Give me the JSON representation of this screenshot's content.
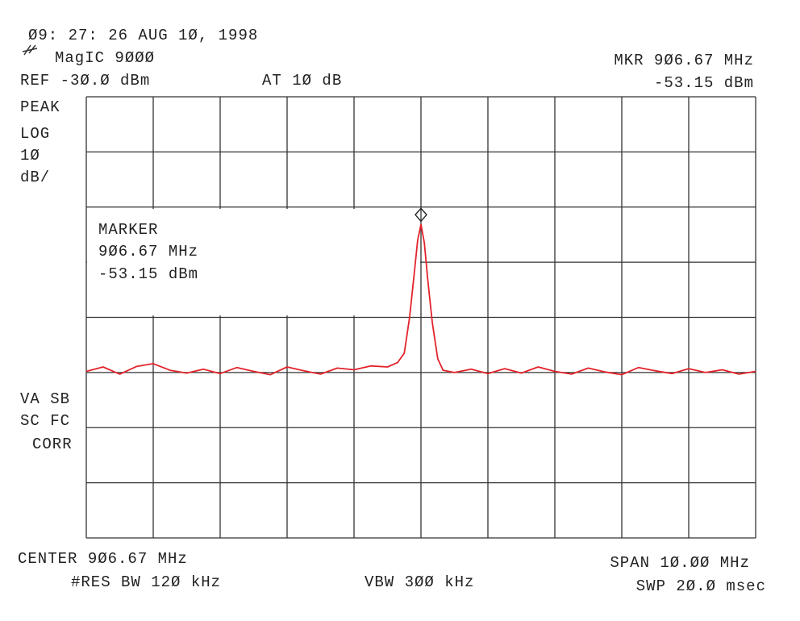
{
  "chart_data": {
    "type": "line",
    "labels": {
      "timestamp": "Ø9: 27: 26 AUG 1Ø, 1998",
      "title": "MagIC 9ØØØ",
      "ref": "REF -3Ø.Ø dBm",
      "atten": "AT 1Ø dB",
      "mkr_freq": "MKR 9Ø6.67 MHz",
      "mkr_level": "-53.15 dBm",
      "mode1": "PEAK",
      "mode2": "LOG",
      "mode3": "1Ø",
      "mode4": "dB/",
      "status1": "VA SB",
      "status2": "SC FC",
      "status3": "CORR",
      "box_title": "MARKER",
      "box_freq": "9Ø6.67 MHz",
      "box_level": "-53.15 dBm",
      "center": "CENTER 9Ø6.67 MHz",
      "rbw": "#RES BW 12Ø kHz",
      "vbw": "VBW 3ØØ kHz",
      "span": "SPAN 1Ø.ØØ MHz",
      "sweep": "SWP 2Ø.Ø msec"
    },
    "xlim": [
      901.67,
      911.67
    ],
    "xticks": [
      901.67,
      902.67,
      903.67,
      904.67,
      905.67,
      906.67,
      907.67,
      908.67,
      909.67,
      910.67,
      911.67
    ],
    "ylim": [
      -110,
      -30
    ],
    "yticks": [
      -110,
      -100,
      -90,
      -80,
      -70,
      -60,
      -50,
      -40,
      -30
    ],
    "grid": true,
    "marker": {
      "x": 906.67,
      "y": -53.15
    },
    "series": [
      {
        "color": "#e3232b",
        "x": [
          901.67,
          901.92,
          902.17,
          902.42,
          902.67,
          902.92,
          903.17,
          903.42,
          903.67,
          903.92,
          904.17,
          904.42,
          904.67,
          904.92,
          905.17,
          905.42,
          905.67,
          905.92,
          906.17,
          906.32,
          906.42,
          906.5,
          906.57,
          906.62,
          906.67,
          906.72,
          906.77,
          906.84,
          906.92,
          907.0,
          907.17,
          907.42,
          907.67,
          907.92,
          908.17,
          908.42,
          908.67,
          908.92,
          909.17,
          909.42,
          909.67,
          909.92,
          910.17,
          910.42,
          910.67,
          910.92,
          911.17,
          911.42,
          911.67
        ],
        "values": [
          -79.8,
          -79.0,
          -80.3,
          -78.9,
          -78.4,
          -79.6,
          -80.1,
          -79.4,
          -80.2,
          -79.1,
          -79.8,
          -80.4,
          -79.0,
          -79.7,
          -80.3,
          -79.2,
          -79.5,
          -78.8,
          -79.0,
          -78.2,
          -76.5,
          -70.0,
          -62.0,
          -56.0,
          -53.15,
          -56.5,
          -63.0,
          -71.0,
          -77.5,
          -79.6,
          -80.0,
          -79.4,
          -80.2,
          -79.3,
          -80.1,
          -79.0,
          -79.8,
          -80.3,
          -79.2,
          -79.9,
          -80.4,
          -79.1,
          -79.7,
          -80.2,
          -79.3,
          -80.0,
          -79.5,
          -80.3,
          -79.8
        ]
      }
    ]
  }
}
